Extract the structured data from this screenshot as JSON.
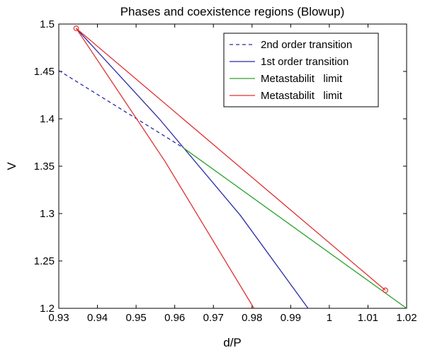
{
  "chart_data": {
    "type": "line",
    "title": "Phases and coexistence regions (Blowup)",
    "xlabel": "d/P",
    "ylabel": "V",
    "xlim": [
      0.93,
      1.02
    ],
    "ylim": [
      1.2,
      1.5
    ],
    "xticks": [
      0.93,
      0.94,
      0.95,
      0.96,
      0.97,
      0.98,
      0.99,
      1,
      1.01,
      1.02
    ],
    "xtick_labels": [
      "0.93",
      "0.94",
      "0.95",
      "0.96",
      "0.97",
      "0.98",
      "0.99",
      "1",
      "1.01",
      "1.02"
    ],
    "yticks": [
      1.2,
      1.25,
      1.3,
      1.35,
      1.4,
      1.45,
      1.5
    ],
    "ytick_labels": [
      "1.2",
      "1.25",
      "1.3",
      "1.35",
      "1.4",
      "1.45",
      "1.5"
    ],
    "grid": false,
    "legend_position": "top-right",
    "series": [
      {
        "name": "2nd order transition",
        "color": "#2b2ba8",
        "dash": true,
        "x": [
          0.93,
          0.962
        ],
        "y": [
          1.451,
          1.37
        ]
      },
      {
        "name": "1st order transition",
        "color": "#2b2ba8",
        "dash": false,
        "x": [
          0.9345,
          0.956,
          0.977,
          0.9945
        ],
        "y": [
          1.4955,
          1.4,
          1.298,
          1.2
        ]
      },
      {
        "name": "Metastabilit   limit",
        "color": "#2ca02c",
        "dash": false,
        "x": [
          0.962,
          1.02
        ],
        "y": [
          1.37,
          1.2
        ]
      },
      {
        "name": "Metastabilit   limit",
        "color": "#e03030",
        "dash": false,
        "x": [
          0.9345,
          0.9575,
          0.9805
        ],
        "y": [
          1.4955,
          1.355,
          1.2
        ]
      }
    ],
    "extra_lines": [
      {
        "color": "#e03030",
        "x": [
          0.9345,
          1.0145
        ],
        "y": [
          1.4955,
          1.219
        ]
      }
    ],
    "markers": [
      {
        "x": 0.9345,
        "y": 1.4955,
        "color": "#e03030"
      },
      {
        "x": 1.0145,
        "y": 1.219,
        "color": "#e03030"
      }
    ]
  }
}
